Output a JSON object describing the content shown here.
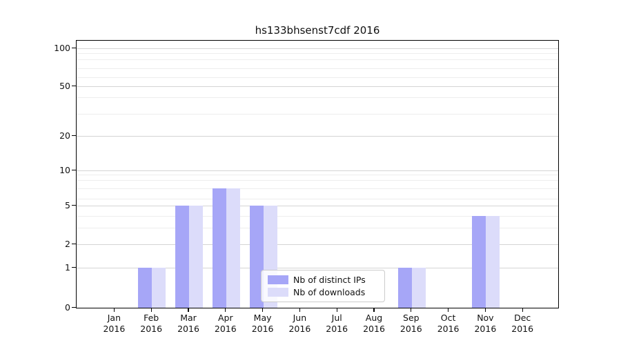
{
  "title": "hs133bhsenst7cdf 2016",
  "chart_data": {
    "type": "bar",
    "title": "hs133bhsenst7cdf 2016",
    "categories": [
      "Jan 2016",
      "Feb 2016",
      "Mar 2016",
      "Apr 2016",
      "May 2016",
      "Jun 2016",
      "Jul 2016",
      "Aug 2016",
      "Sep 2016",
      "Oct 2016",
      "Nov 2016",
      "Dec 2016"
    ],
    "x_tick_months": [
      "Jan",
      "Feb",
      "Mar",
      "Apr",
      "May",
      "Jun",
      "Jul",
      "Aug",
      "Sep",
      "Oct",
      "Nov",
      "Dec"
    ],
    "x_tick_year": "2016",
    "series": [
      {
        "name": "Nb of distinct IPs",
        "color": "#a6a6f7",
        "values": [
          0,
          1,
          5,
          7,
          5,
          0,
          0,
          0,
          1,
          0,
          4,
          0
        ]
      },
      {
        "name": "Nb of downloads",
        "color": "#dcdcfa",
        "values": [
          0,
          1,
          5,
          7,
          5,
          0,
          0,
          0,
          1,
          0,
          4,
          0
        ]
      }
    ],
    "y_axis": {
      "scale": "symlog",
      "major_ticks": [
        0,
        1,
        2,
        5,
        10,
        20,
        50,
        100
      ],
      "minor_gridlines": [
        3,
        4,
        6,
        7,
        8,
        9,
        30,
        40,
        60,
        70,
        80,
        90
      ],
      "range": [
        0,
        110
      ]
    },
    "legend": {
      "position": "lower center",
      "entries": [
        "Nb of distinct IPs",
        "Nb of downloads"
      ]
    },
    "grid": true,
    "colors": {
      "bar_distinct_ips": "#a6a6f7",
      "bar_downloads": "#dcdcfa",
      "grid_major": "#d4d4d4",
      "grid_minor": "#ededed",
      "axis": "#000000",
      "background": "#ffffff",
      "legend_border": "#cbcbcb"
    }
  }
}
